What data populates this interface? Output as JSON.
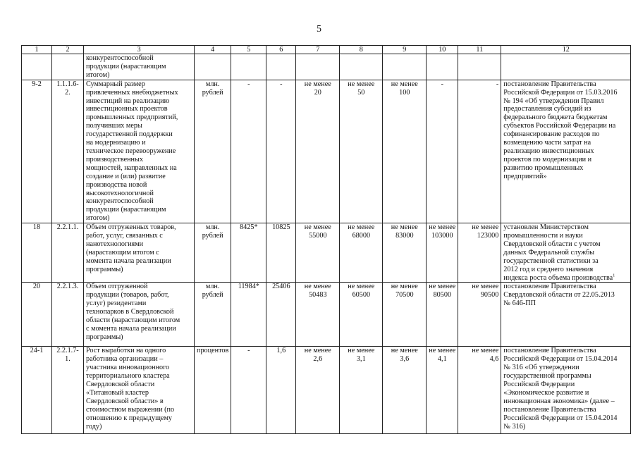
{
  "page_number": "5",
  "header": [
    "1",
    "2",
    "3",
    "4",
    "5",
    "6",
    "7",
    "8",
    "9",
    "10",
    "11",
    "12"
  ],
  "rows": [
    {
      "c1": "",
      "c2": "",
      "c3": "конкурентоспособной\nпродукции (нарастающим\nитогом)",
      "c4": "",
      "c5": "",
      "c6": "",
      "c7": "",
      "c8": "",
      "c9": "",
      "c10": "",
      "c11": "",
      "c12": ""
    },
    {
      "c1": "9-2",
      "c2": "1.1.1.6-2.",
      "c3": "Суммарный размер\nпривлеченных внебюджетных\nинвестиций на реализацию\nинвестиционных проектов\nпромышленных предприятий,\nполучивших меры\nгосударственной поддержки\nна модернизацию и\nтехническое перевооружение\nпроизводственных\nмощностей, направленных на\nсоздание и (или) развитие\nпроизводства новой\nвысокотехнологичной\nконкурентоспособной\nпродукции (нарастающим\nитогом)",
      "c4": "млн.\nрублей",
      "c5": "-",
      "c6": "-",
      "c7": "не менее\n20",
      "c8": "не менее\n50",
      "c9": "не менее\n100",
      "c10": "-",
      "c11": "-",
      "c12": "постановление Правительства\nРоссийской Федерации от 15.03.2016\n№ 194 «Об утверждении Правил\nпредоставления субсидий из\nфедерального бюджета бюджетам\nсубъектов Российской Федерации на\nсофинансирование расходов по\nвозмещению части затрат на\nреализацию инвестиционных\nпроектов по модернизации и\nразвитию промышленных\nпредприятий»"
    },
    {
      "c1": "18",
      "c2": "2.2.1.1.",
      "c3": "Объем отгруженных товаров,\nработ, услуг, связанных с\nнанотехнологиями\n(нарастающим итогом с\nмомента начала реализации\nпрограммы)",
      "c4": "млн.\nрублей",
      "c5": "8425*",
      "c6": "10825",
      "c7": "не менее\n55000",
      "c8": "не менее\n68000",
      "c9": "не менее\n83000",
      "c10": "не менее\n103000",
      "c11": "не менее\n123000",
      "c12": "установлен Министерством\nпромышленности и науки\nСвердловской области с учетом\nданных Федеральной службы\nгосударственной статистики за\n2012 год и среднего значения\nиндекса роста объема производства",
      "c12_sup": "1"
    },
    {
      "c1": "20",
      "c2": "2.2.1.3.",
      "c3": "Объем отгруженной\nпродукции (товаров, работ,\nуслуг) резидентами\nтехнопарков в Свердловской\nобласти (нарастающим итогом\nс момента начала реализации\nпрограммы)",
      "c4": "млн.\nрублей",
      "c5": "11984*",
      "c6": "25406",
      "c7": "не менее\n50483",
      "c8": "не менее\n60500",
      "c9": "не менее\n70500",
      "c10": "не менее\n80500",
      "c11": "не менее\n90500",
      "c12": "постановление Правительства\nСвердловской области от 22.05.2013\n№ 646-ПП"
    },
    {
      "c1": "24-1",
      "c2": "2.2.1.7-1.",
      "c3": "Рост выработки на одного\nработника организации –\nучастника инновационного\nтерриториального кластера\nСвердловской области\n«Титановый кластер\nСвердловской области» в\nстоимостном выражении (по\nотношению к предыдущему\nгоду)",
      "c4": "процентов",
      "c5": "-",
      "c6": "1,6",
      "c7": "не менее\n2,6",
      "c8": "не менее\n3,1",
      "c9": "не менее\n3,6",
      "c10": "не менее\n4,1",
      "c11": "не менее\n4,6",
      "c12": "постановление Правительства\nРоссийской Федерации от 15.04.2014\n№ 316 «Об утверждении\nгосударственной программы\nРоссийской Федерации\n«Экономическое развитие и\nинновационная экономика» (далее –\nпостановление Правительства\nРоссийской Федерации от 15.04.2014\n№ 316)"
    }
  ]
}
